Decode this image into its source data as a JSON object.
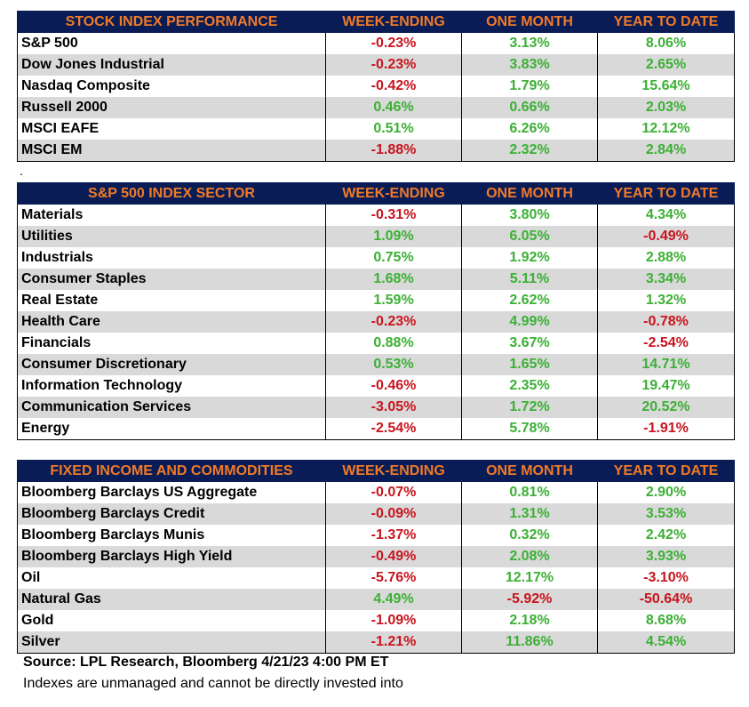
{
  "colors": {
    "header_bg": "#0a1c55",
    "header_text": "#f07a28",
    "positive": "#3cb035",
    "negative": "#c8141e",
    "stripe": "#d9d9d9"
  },
  "tables": [
    {
      "headers": [
        "STOCK INDEX PERFORMANCE",
        "WEEK-ENDING",
        "ONE MONTH",
        "YEAR TO DATE"
      ],
      "rows": [
        [
          "S&P 500",
          "-0.23%",
          "3.13%",
          "8.06%"
        ],
        [
          "Dow Jones Industrial",
          "-0.23%",
          "3.83%",
          "2.65%"
        ],
        [
          "Nasdaq Composite",
          "-0.42%",
          "1.79%",
          "15.64%"
        ],
        [
          "Russell 2000",
          "0.46%",
          "0.66%",
          "2.03%"
        ],
        [
          "MSCI EAFE",
          "0.51%",
          "6.26%",
          "12.12%"
        ],
        [
          "MSCI EM",
          "-1.88%",
          "2.32%",
          "2.84%"
        ]
      ]
    },
    {
      "headers": [
        "S&P 500 INDEX SECTOR",
        "WEEK-ENDING",
        "ONE MONTH",
        "YEAR TO DATE"
      ],
      "rows": [
        [
          "Materials",
          "-0.31%",
          "3.80%",
          "4.34%"
        ],
        [
          "Utilities",
          "1.09%",
          "6.05%",
          "-0.49%"
        ],
        [
          "Industrials",
          "0.75%",
          "1.92%",
          "2.88%"
        ],
        [
          "Consumer Staples",
          "1.68%",
          "5.11%",
          "3.34%"
        ],
        [
          "Real Estate",
          "1.59%",
          "2.62%",
          "1.32%"
        ],
        [
          "Health Care",
          "-0.23%",
          "4.99%",
          "-0.78%"
        ],
        [
          "Financials",
          "0.88%",
          "3.67%",
          "-2.54%"
        ],
        [
          "Consumer Discretionary",
          "0.53%",
          "1.65%",
          "14.71%"
        ],
        [
          "Information Technology",
          "-0.46%",
          "2.35%",
          "19.47%"
        ],
        [
          "Communication Services",
          "-3.05%",
          "1.72%",
          "20.52%"
        ],
        [
          "Energy",
          "-2.54%",
          "5.78%",
          "-1.91%"
        ]
      ]
    },
    {
      "headers": [
        "FIXED INCOME AND COMMODITIES",
        "WEEK-ENDING",
        "ONE MONTH",
        "YEAR TO DATE"
      ],
      "rows": [
        [
          "Bloomberg Barclays US Aggregate",
          "-0.07%",
          "0.81%",
          "2.90%"
        ],
        [
          "Bloomberg Barclays Credit",
          "-0.09%",
          "1.31%",
          "3.53%"
        ],
        [
          "Bloomberg Barclays Munis",
          "-1.37%",
          "0.32%",
          "2.42%"
        ],
        [
          "Bloomberg Barclays High Yield",
          "-0.49%",
          "2.08%",
          "3.93%"
        ],
        [
          "Oil",
          "-5.76%",
          "12.17%",
          "-3.10%"
        ],
        [
          "Natural Gas",
          "4.49%",
          "-5.92%",
          "-50.64%"
        ],
        [
          "Gold",
          "-1.09%",
          "2.18%",
          "8.68%"
        ],
        [
          "Silver",
          "-1.21%",
          "11.86%",
          "4.54%"
        ]
      ]
    }
  ],
  "separator": ".",
  "source": "Source: LPL Research, Bloomberg 4/21/23 4:00 PM ET",
  "note": "Indexes are unmanaged and cannot be directly invested into"
}
